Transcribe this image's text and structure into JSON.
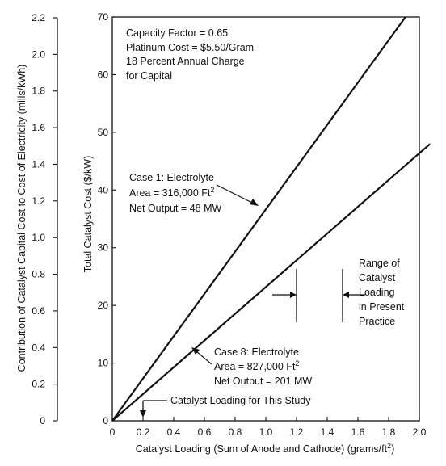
{
  "chart_data": {
    "type": "line",
    "title": "",
    "xlabel": "Catalyst Loading (Sum of Anode and Cathode) (grams/ft",
    "xlabel_sup": "2",
    "xlabel_tail": ")",
    "ylabel_right": "Total Catalyst Cost ($/kW)",
    "ylabel_left": "Contribution of Catalyst Capital Cost to Cost of Electricity (mills/kWh)",
    "xlim": [
      0,
      2.0
    ],
    "ylim_right": [
      0,
      70
    ],
    "ylim_left": [
      0,
      2.2
    ],
    "x_ticks": [
      "0",
      "0.2",
      "0.4",
      "0.6",
      "0.8",
      "1.0",
      "1.2",
      "1.4",
      "1.6",
      "1.8",
      "2.0"
    ],
    "y_right_ticks": [
      "0",
      "10",
      "20",
      "30",
      "40",
      "50",
      "60",
      "70"
    ],
    "y_left_ticks": [
      "0",
      "0.2",
      "0.4",
      "0.6",
      "0.8",
      "1.0",
      "1.2",
      "1.4",
      "1.6",
      "1.8",
      "2.0",
      "2.2"
    ],
    "grid": false,
    "series": [
      {
        "name": "Case 1",
        "x": [
          0,
          1.91
        ],
        "y": [
          0,
          70
        ],
        "color": "#111111"
      },
      {
        "name": "Case 8",
        "x": [
          0,
          2.07
        ],
        "y": [
          0,
          48
        ],
        "color": "#111111"
      }
    ],
    "assumptions": [
      "Capacity Factor = 0.65",
      "Platinum Cost = $5.50/Gram",
      "18 Percent Annual Charge",
      "for Capital"
    ],
    "case1_label": [
      "Case 1:  Electrolyte",
      "Area = 316,000 Ft",
      "Net Output = 48 MW"
    ],
    "case8_label": [
      "Case 8:  Electrolyte",
      "Area = 827,000 Ft",
      "Net Output = 201 MW"
    ],
    "area_sup": "2",
    "range_label": [
      "Range of",
      "Catalyst",
      "Loading",
      "in Present",
      "Practice"
    ],
    "range_x": [
      1.2,
      1.5
    ],
    "study_label": "Catalyst Loading for This Study",
    "study_x": 0.2
  }
}
